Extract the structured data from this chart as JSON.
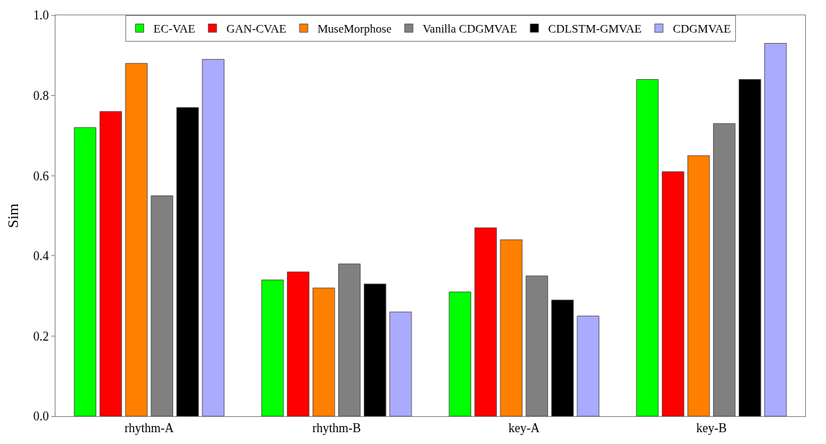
{
  "chart_data": {
    "type": "bar",
    "ylabel": "Sim",
    "categories": [
      "rhythm-A",
      "rhythm-B",
      "key-A",
      "key-B"
    ],
    "series": [
      {
        "name": "EC-VAE",
        "color": "#00ff00",
        "values": [
          0.72,
          0.34,
          0.31,
          0.84
        ]
      },
      {
        "name": "GAN-CVAE",
        "color": "#ff0000",
        "values": [
          0.76,
          0.36,
          0.47,
          0.61
        ]
      },
      {
        "name": "MuseMorphose",
        "color": "#ff8000",
        "values": [
          0.88,
          0.32,
          0.44,
          0.65
        ]
      },
      {
        "name": "Vanilla CDGMVAE",
        "color": "#808080",
        "values": [
          0.55,
          0.38,
          0.35,
          0.73
        ]
      },
      {
        "name": "CDLSTM-GMVAE",
        "color": "#000000",
        "values": [
          0.77,
          0.33,
          0.29,
          0.84
        ]
      },
      {
        "name": "CDGMVAE",
        "color": "#aaaaff",
        "values": [
          0.89,
          0.26,
          0.25,
          0.93
        ]
      }
    ],
    "ylim": [
      0,
      1
    ],
    "yticks": [
      {
        "value": 0,
        "label": "0.0"
      },
      0.2,
      0.4,
      0.6,
      0.8,
      {
        "value": 1,
        "label": "1.0"
      }
    ],
    "legend": "top"
  }
}
